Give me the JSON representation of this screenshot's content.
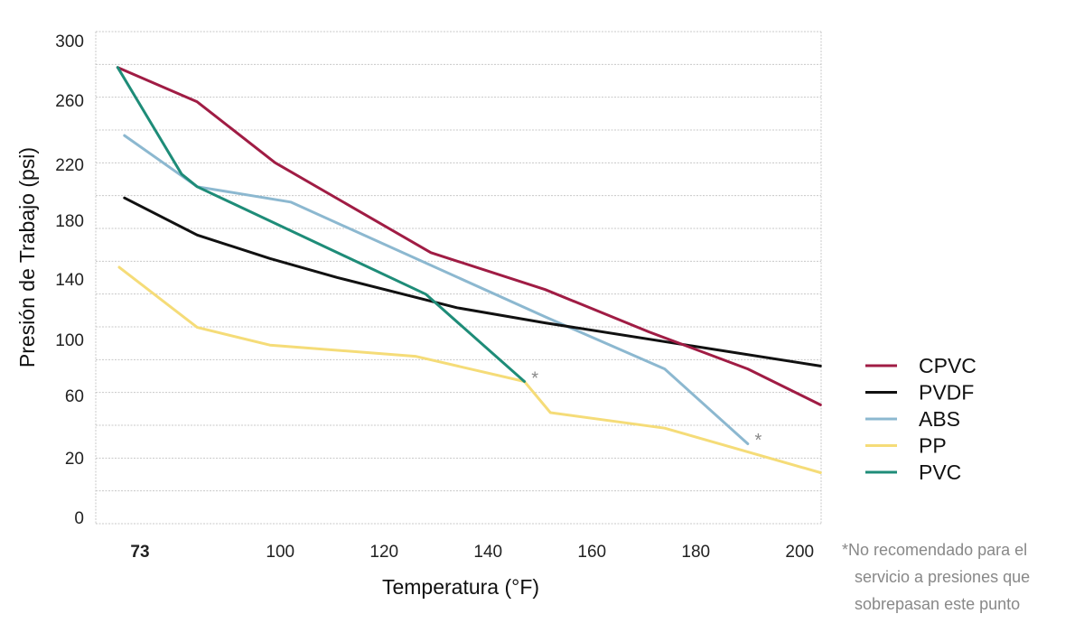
{
  "chart_data": {
    "type": "line",
    "title": "",
    "xlabel": "Temperatura (°F)",
    "ylabel": "Presión de Trabajo (psi)",
    "x_ticks": [
      {
        "value": 73,
        "label": "73",
        "bold": true
      },
      {
        "value": 100,
        "label": "100"
      },
      {
        "value": 120,
        "label": "120"
      },
      {
        "value": 140,
        "label": "140"
      },
      {
        "value": 160,
        "label": "160"
      },
      {
        "value": 180,
        "label": "180"
      },
      {
        "value": 200,
        "label": "200"
      }
    ],
    "y_ticks": [
      {
        "value": 300,
        "label": "300"
      },
      {
        "value": 260,
        "label": "260"
      },
      {
        "value": 220,
        "label": "220"
      },
      {
        "value": 180,
        "label": "180"
      },
      {
        "value": 140,
        "label": "140"
      },
      {
        "value": 100,
        "label": "100"
      },
      {
        "value": 60,
        "label": "60"
      },
      {
        "value": 20,
        "label": "20"
      },
      {
        "value": 0,
        "label": "0"
      }
    ],
    "xlim": [
      64,
      204
    ],
    "ylim": [
      0,
      300
    ],
    "grid": true,
    "legend_position": "right",
    "series": [
      {
        "name": "CPVC",
        "color": "#a01c44",
        "points": [
          [
            68.7,
            282
          ],
          [
            84,
            259
          ],
          [
            99,
            221
          ],
          [
            129,
            158
          ],
          [
            151,
            133
          ],
          [
            171,
            105
          ],
          [
            190,
            79
          ],
          [
            204,
            54
          ]
        ]
      },
      {
        "name": "PVDF",
        "color": "#111111",
        "points": [
          [
            70,
            196
          ],
          [
            84,
            170
          ],
          [
            98,
            154
          ],
          [
            111,
            141
          ],
          [
            134,
            121
          ],
          [
            151,
            111
          ],
          [
            204,
            81
          ]
        ]
      },
      {
        "name": "ABS",
        "color": "#8cb8d0",
        "points": [
          [
            70,
            238
          ],
          [
            84,
            204
          ],
          [
            102,
            193
          ],
          [
            151,
            115
          ],
          [
            174,
            79
          ],
          [
            190,
            29
          ]
        ]
      },
      {
        "name": "PP",
        "color": "#f5dc78",
        "points": [
          [
            69,
            148
          ],
          [
            84,
            108
          ],
          [
            98,
            96
          ],
          [
            126,
            88
          ],
          [
            147,
            70
          ],
          [
            152,
            49
          ],
          [
            174,
            39
          ],
          [
            204,
            15
          ]
        ]
      },
      {
        "name": "PVC",
        "color": "#1e8c78",
        "points": [
          [
            68.7,
            282
          ],
          [
            81,
            213
          ],
          [
            84,
            204
          ],
          [
            128,
            130
          ],
          [
            147,
            70
          ]
        ]
      }
    ],
    "annotations": [
      {
        "text": "*",
        "x": 148,
        "y": 72,
        "series": "PVC"
      },
      {
        "text": "*",
        "x": 191,
        "y": 31,
        "series": "ABS"
      }
    ],
    "footnote": {
      "star": "*",
      "lines": [
        "No recomendado para el",
        "servicio a presiones que",
        "sobrepasan este punto"
      ]
    }
  }
}
